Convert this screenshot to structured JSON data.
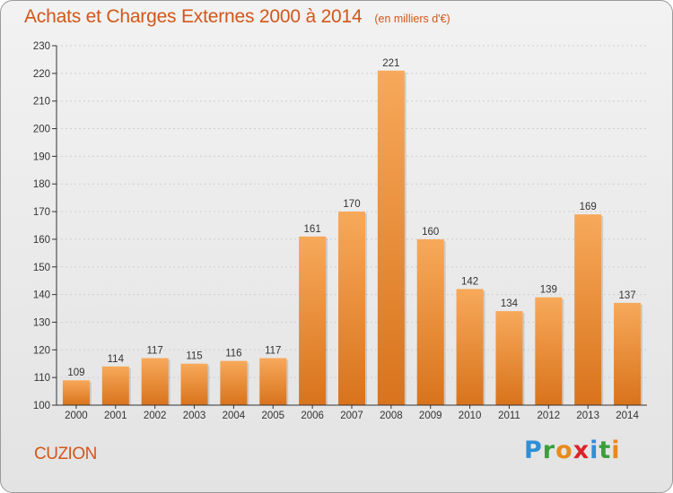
{
  "title": "Achats et Charges Externes 2000 à 2014",
  "unit": "(en milliers d'€)",
  "commune": "CUZION",
  "logo_text": "Proxiti",
  "colors": {
    "accent": "#d3561a",
    "bar_light": "#f7a95a",
    "bar_dark": "#d9731c",
    "axis": "#333333",
    "grid": "#cfcfcf"
  },
  "chart_data": {
    "type": "bar",
    "categories": [
      "2000",
      "2001",
      "2002",
      "2003",
      "2004",
      "2005",
      "2006",
      "2007",
      "2008",
      "2009",
      "2010",
      "2011",
      "2012",
      "2013",
      "2014"
    ],
    "values": [
      109,
      114,
      117,
      115,
      116,
      117,
      161,
      170,
      221,
      160,
      142,
      134,
      139,
      169,
      137
    ],
    "ylim": [
      100,
      230
    ],
    "yticks": [
      100,
      110,
      120,
      130,
      140,
      150,
      160,
      170,
      180,
      190,
      200,
      210,
      220,
      230
    ],
    "grid": "horizontal-dotted",
    "data_labels": true
  }
}
